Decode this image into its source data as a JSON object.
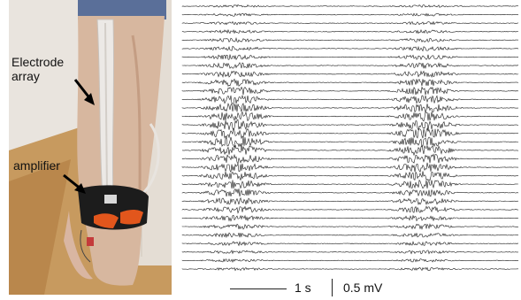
{
  "annotations": {
    "electrode_array": "Electrode\narray",
    "amplifier": "amplifier"
  },
  "scale_bar": {
    "time_label": "1 s",
    "amplitude_label": "0.5 mV"
  },
  "recording": {
    "channel_count": 32,
    "bursts": 2,
    "trace_color": "#1a1a1a"
  },
  "photo": {
    "content": "leg-with-electrode-array-and-amplifier",
    "colors": {
      "skin": "#d7b79f",
      "floor": "#c79a5f",
      "wall": "#e9e4de",
      "shorts": "#5a6f99",
      "strip": "#ece9e6",
      "amplifier_body": "#1c1c1c",
      "amplifier_accent": "#e2561c"
    }
  }
}
